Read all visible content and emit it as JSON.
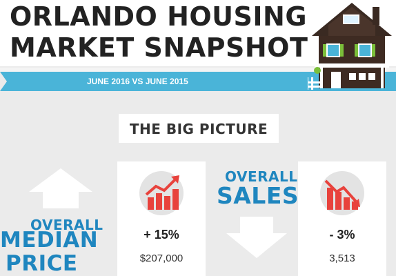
{
  "header": {
    "title_line1": "ORLANDO HOUSING",
    "title_line2": "MARKET SNAPSHOT",
    "ribbon_text": "JUNE 2016 VS JUNE 2015"
  },
  "section": {
    "title": "THE BIG PICTURE"
  },
  "median_price": {
    "label_overall": "OVERALL",
    "label_line1": "MEDIAN",
    "label_line2": "PRICE",
    "change": "+ 15%",
    "value": "$207,000",
    "trend": "up",
    "icon": "trend-up-icon"
  },
  "sales": {
    "label_overall": "OVERALL",
    "label_main": "SALES",
    "change": "- 3%",
    "value": "3,513",
    "trend": "down",
    "icon": "trend-down-icon"
  },
  "colors": {
    "accent_blue": "#1f86bf",
    "ribbon_blue": "#4ab4d8",
    "icon_red": "#e8423c",
    "icon_circle": "#e3e3e3",
    "arrow_white": "#ffffff",
    "background": "#ebebeb"
  }
}
